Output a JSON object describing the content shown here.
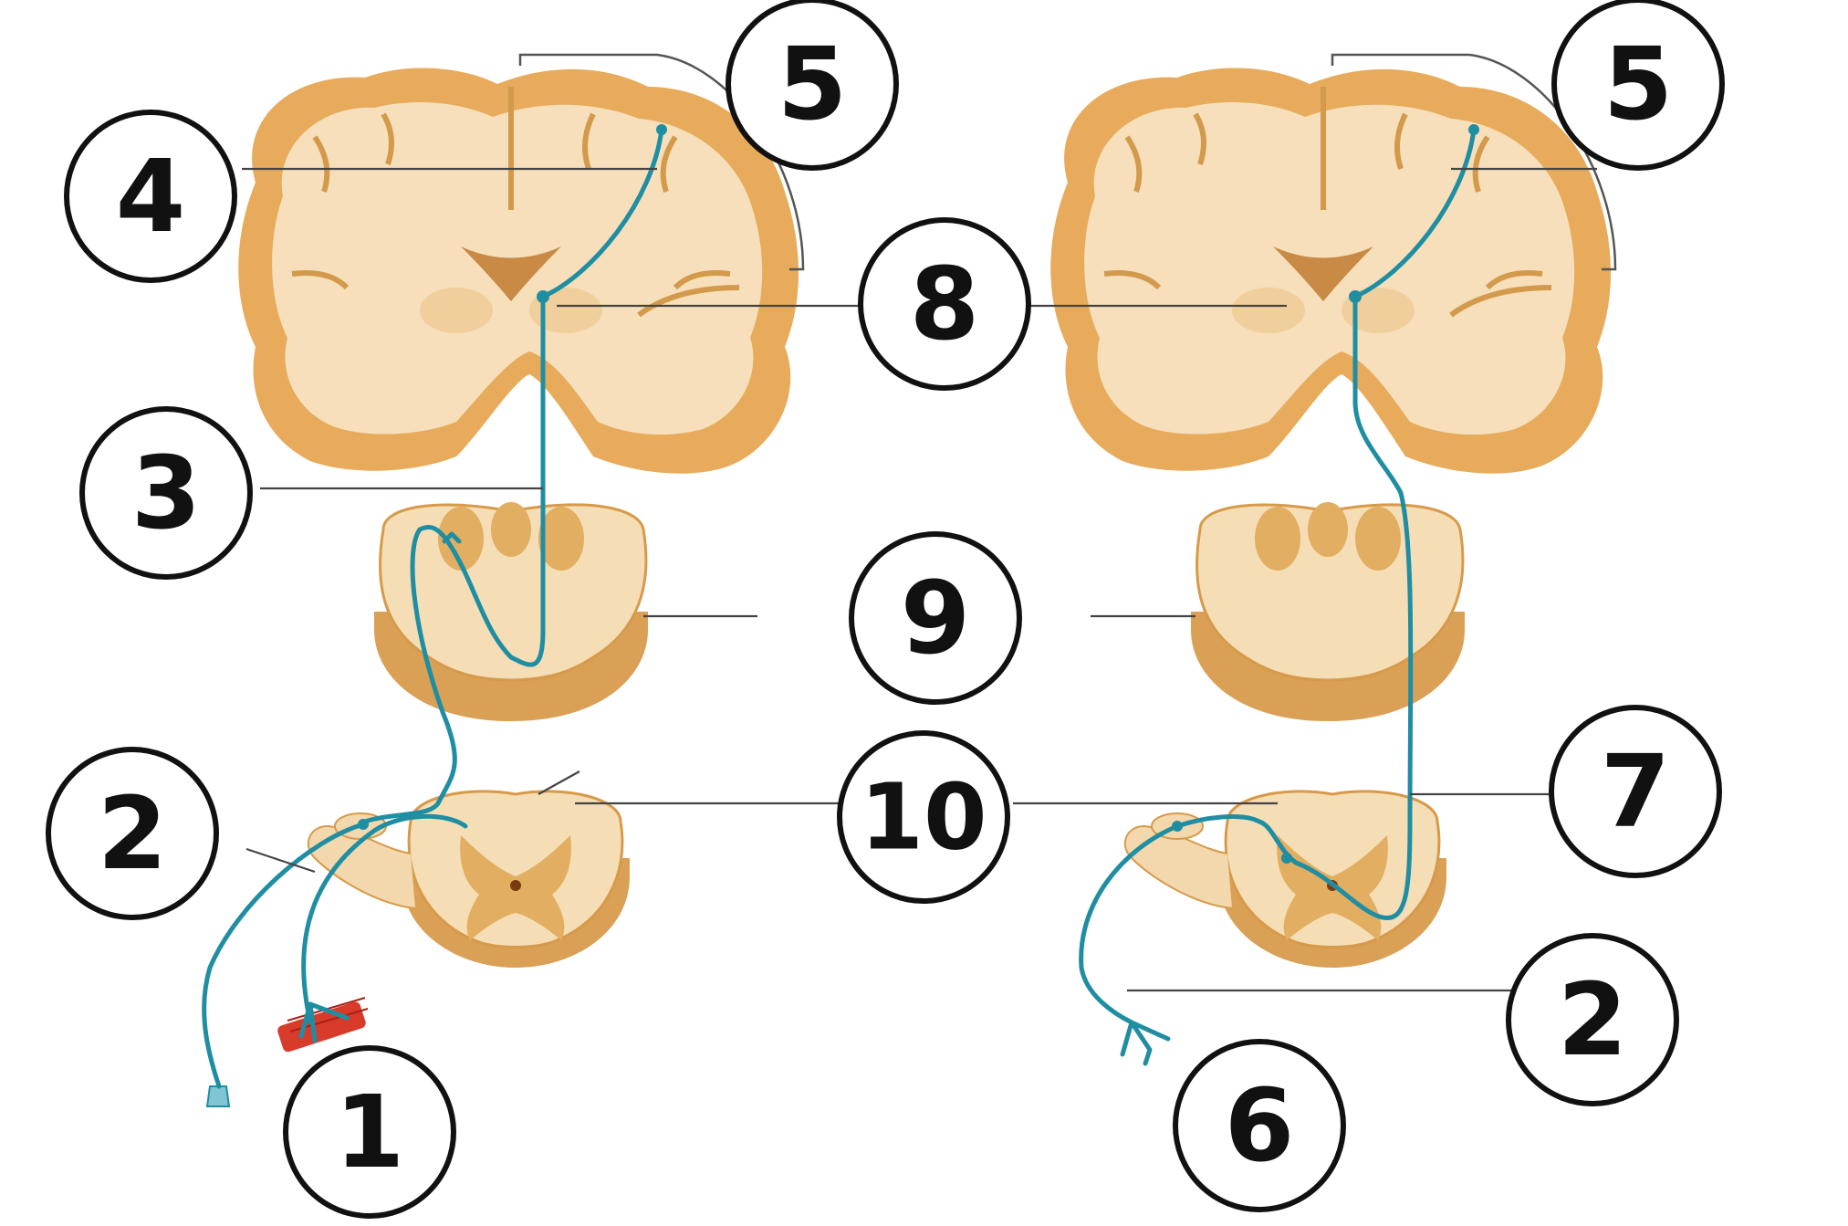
{
  "labels": {
    "l1": "1",
    "l2a": "2",
    "l2b": "2",
    "l3": "3",
    "l4": "4",
    "l5a": "5",
    "l5b": "5",
    "l6": "6",
    "l7": "7",
    "l8": "8",
    "l9": "9",
    "l10": "10"
  },
  "colors": {
    "nerve": "#1f8ea3",
    "gray_matter": "#e7ab5b",
    "white_matter": "#f6dfba",
    "muscle": "#d93b2b"
  }
}
